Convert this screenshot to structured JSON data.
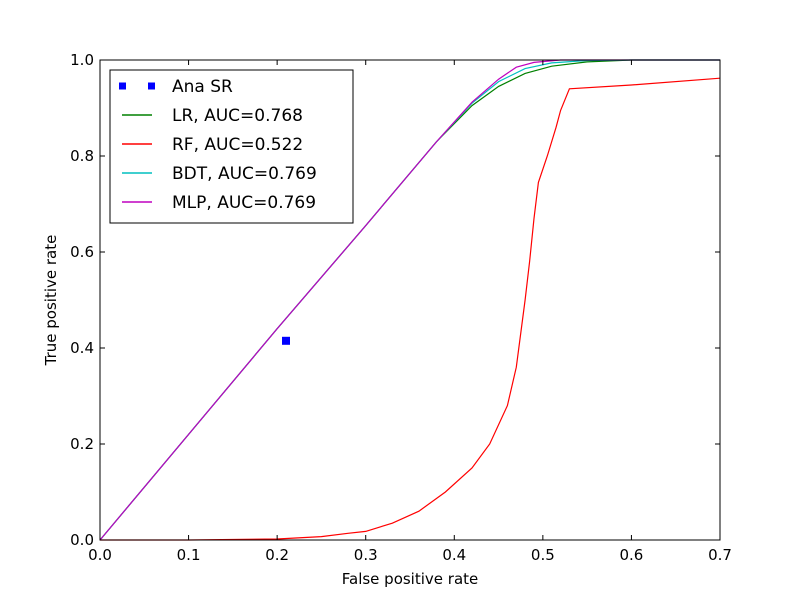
{
  "chart_data": {
    "type": "line",
    "xlabel": "False positive rate",
    "ylabel": "True positive rate",
    "xlim": [
      0.0,
      0.7
    ],
    "ylim": [
      0.0,
      1.0
    ],
    "xticks": [
      "0.0",
      "0.1",
      "0.2",
      "0.3",
      "0.4",
      "0.5",
      "0.6",
      "0.7"
    ],
    "yticks": [
      "0.0",
      "0.2",
      "0.4",
      "0.6",
      "0.8",
      "1.0"
    ],
    "grid": false,
    "legend_position": "top-left",
    "series": [
      {
        "name": "Ana SR",
        "kind": "marker",
        "color": "#0000ff",
        "points": [
          [
            0.21,
            0.415
          ]
        ]
      },
      {
        "name": "LR, AUC=0.768",
        "kind": "line",
        "color": "#008000",
        "points": [
          [
            0.0,
            0.0
          ],
          [
            0.1,
            0.22
          ],
          [
            0.2,
            0.44
          ],
          [
            0.3,
            0.655
          ],
          [
            0.38,
            0.83
          ],
          [
            0.42,
            0.905
          ],
          [
            0.45,
            0.945
          ],
          [
            0.48,
            0.972
          ],
          [
            0.51,
            0.987
          ],
          [
            0.55,
            0.996
          ],
          [
            0.6,
            1.0
          ],
          [
            0.7,
            1.0
          ]
        ]
      },
      {
        "name": "RF, AUC=0.522",
        "kind": "line",
        "color": "#ff0000",
        "points": [
          [
            0.0,
            0.0
          ],
          [
            0.1,
            0.0
          ],
          [
            0.2,
            0.002
          ],
          [
            0.25,
            0.007
          ],
          [
            0.28,
            0.014
          ],
          [
            0.3,
            0.018
          ],
          [
            0.33,
            0.035
          ],
          [
            0.36,
            0.06
          ],
          [
            0.39,
            0.1
          ],
          [
            0.42,
            0.15
          ],
          [
            0.44,
            0.2
          ],
          [
            0.46,
            0.28
          ],
          [
            0.47,
            0.36
          ],
          [
            0.48,
            0.5
          ],
          [
            0.485,
            0.58
          ],
          [
            0.49,
            0.67
          ],
          [
            0.495,
            0.745
          ],
          [
            0.505,
            0.8
          ],
          [
            0.515,
            0.86
          ],
          [
            0.52,
            0.895
          ],
          [
            0.53,
            0.94
          ],
          [
            0.6,
            0.948
          ],
          [
            0.7,
            0.962
          ]
        ]
      },
      {
        "name": "BDT, AUC=0.769",
        "kind": "line",
        "color": "#00bfbf",
        "points": [
          [
            0.0,
            0.0
          ],
          [
            0.1,
            0.22
          ],
          [
            0.2,
            0.44
          ],
          [
            0.3,
            0.655
          ],
          [
            0.38,
            0.83
          ],
          [
            0.42,
            0.91
          ],
          [
            0.45,
            0.955
          ],
          [
            0.48,
            0.982
          ],
          [
            0.51,
            0.994
          ],
          [
            0.55,
            0.999
          ],
          [
            0.6,
            1.0
          ],
          [
            0.7,
            1.0
          ]
        ]
      },
      {
        "name": "MLP, AUC=0.769",
        "kind": "line",
        "color": "#bf00bf",
        "points": [
          [
            0.0,
            0.0
          ],
          [
            0.1,
            0.22
          ],
          [
            0.2,
            0.44
          ],
          [
            0.3,
            0.655
          ],
          [
            0.38,
            0.83
          ],
          [
            0.42,
            0.912
          ],
          [
            0.45,
            0.96
          ],
          [
            0.47,
            0.985
          ],
          [
            0.49,
            0.995
          ],
          [
            0.52,
            1.0
          ],
          [
            0.6,
            1.0
          ],
          [
            0.7,
            1.0
          ]
        ]
      }
    ]
  }
}
